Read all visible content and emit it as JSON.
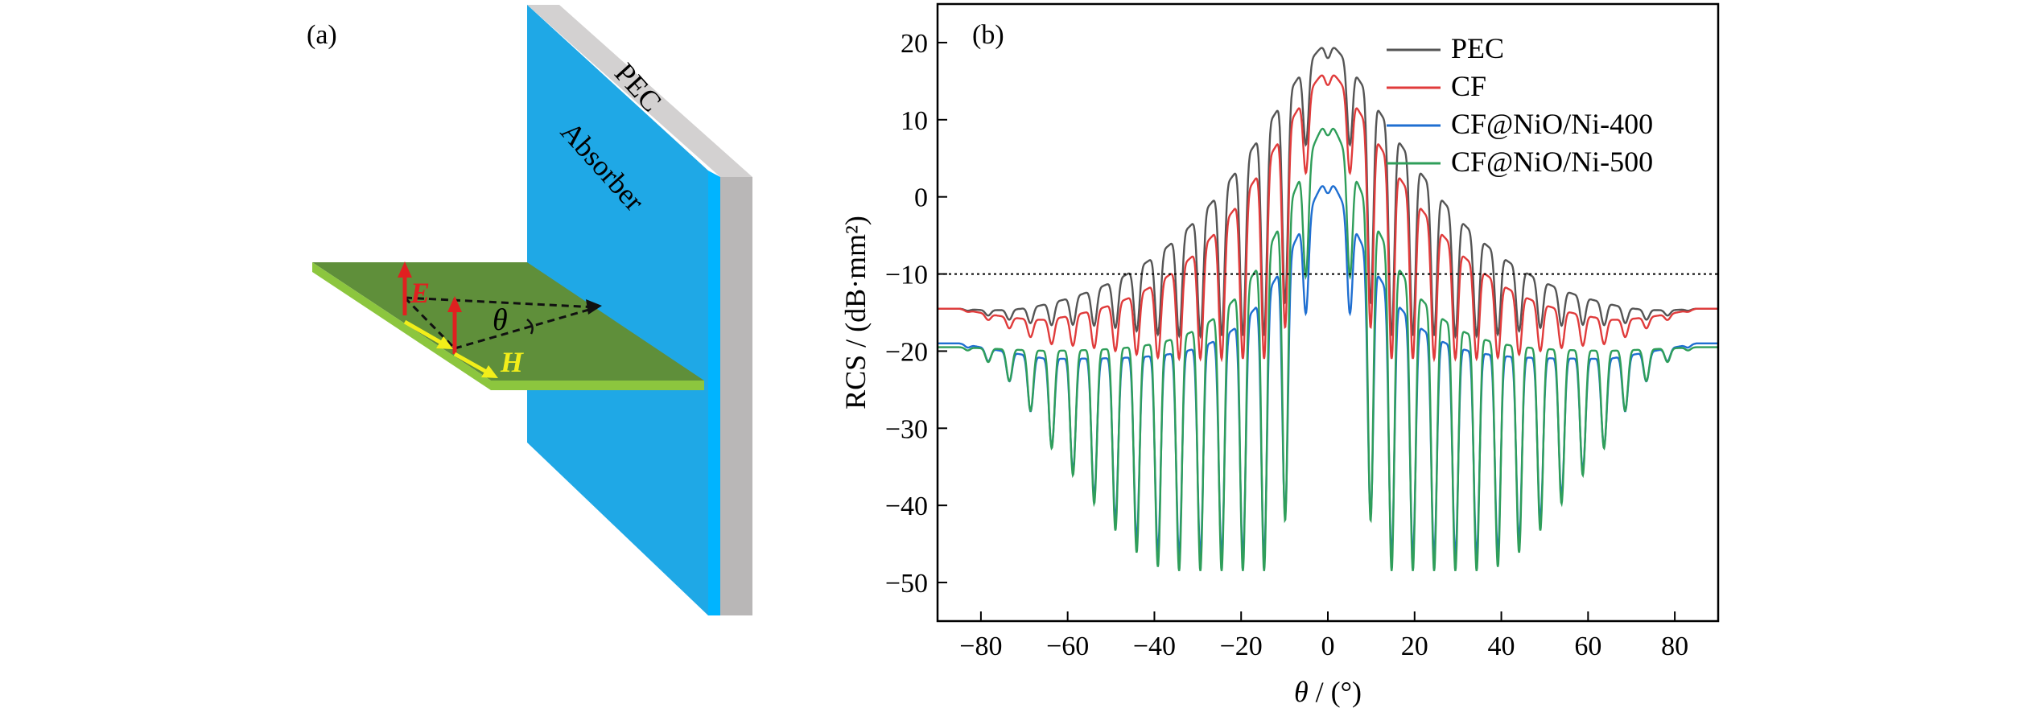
{
  "panel_a": {
    "label": "(a)",
    "plate_labels": {
      "pec": "PEC",
      "absorber": "Absorber"
    },
    "symbols": {
      "e_field": "E",
      "h_field": "H",
      "angle": "θ"
    },
    "colors": {
      "absorber": "#1fa8e6",
      "absorber_edge": "#00b4ff",
      "pec": "#b9b7b7",
      "pec_top": "#d3d1d1",
      "ground": "#5f8f3a",
      "ground_edge": "#8cc63e",
      "e_arrow": "#e02020",
      "h_arrow": "#f2ee1a"
    }
  },
  "chart_data": {
    "type": "line",
    "panel_label": "(b)",
    "title": "",
    "xlabel_symbol": "θ",
    "xlabel_unit": " / (°)",
    "ylabel": "RCS / (dB·mm²)",
    "xlim": [
      -90,
      90
    ],
    "ylim": [
      -55,
      25
    ],
    "xticks": [
      -80,
      -60,
      -40,
      -20,
      0,
      20,
      40,
      60,
      80
    ],
    "xtick_labels": [
      "−80",
      "−60",
      "−40",
      "−20",
      "0",
      "20",
      "40",
      "60",
      "80"
    ],
    "yticks": [
      -50,
      -40,
      -30,
      -20,
      -10,
      0,
      10,
      20
    ],
    "ytick_labels": [
      "−50",
      "−40",
      "−30",
      "−20",
      "−10",
      "0",
      "10",
      "20"
    ],
    "grid": false,
    "legend_position": "top-right",
    "reference_line": {
      "y": -10,
      "style": "dotted"
    },
    "series": [
      {
        "name": "PEC",
        "color": "#555555",
        "peak": 20,
        "floor": -16,
        "nulls": -16,
        "edge": -14.5,
        "width": 30,
        "period": 4.9
      },
      {
        "name": "CF",
        "color": "#e03b3b",
        "peak": 16.5,
        "floor": -17,
        "nulls": -19,
        "edge": -14.5,
        "width": 26,
        "period": 4.9
      },
      {
        "name": "CF@NiO/Ni-400",
        "color": "#1f6fd1",
        "peak": 2.5,
        "floor": -21,
        "nulls": -44.5,
        "edge": -19,
        "width": 14,
        "period": 4.9
      },
      {
        "name": "CF@NiO/Ni-500",
        "color": "#2f9e5a",
        "peak": 10,
        "floor": -20,
        "nulls": -46.5,
        "edge": -19.5,
        "width": 16,
        "period": 4.9
      }
    ]
  }
}
